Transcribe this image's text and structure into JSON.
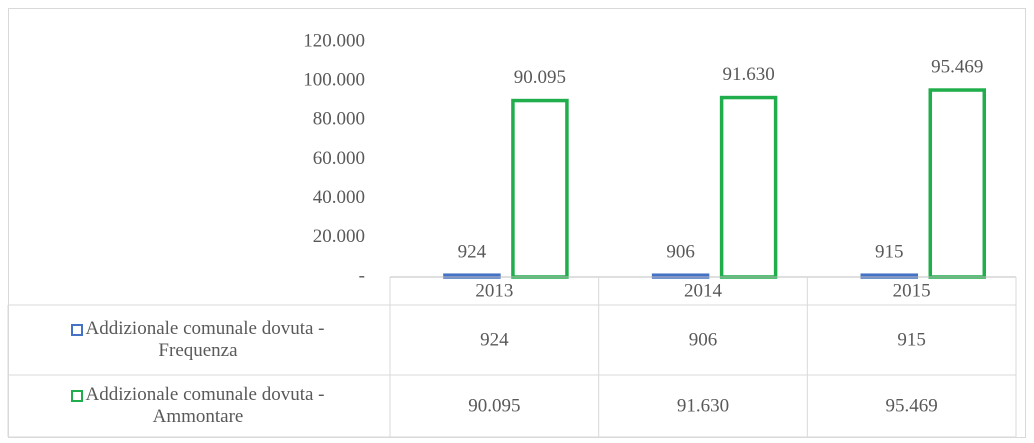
{
  "chart_data": {
    "type": "bar",
    "categories": [
      "2013",
      "2014",
      "2015"
    ],
    "series": [
      {
        "name": "Addizionale comunale dovuta - Frequenza",
        "color": "#4472c4",
        "values": [
          924,
          906,
          915
        ],
        "value_labels": [
          "924",
          "906",
          "915"
        ]
      },
      {
        "name": "Addizionale comunale dovuta - Ammontare",
        "color": "#1fae4b",
        "values": [
          90095,
          91630,
          95469
        ],
        "value_labels": [
          "90.095",
          "91.630",
          "95.469"
        ]
      }
    ],
    "ylim": [
      0,
      120000
    ],
    "yticks": [
      {
        "value": 0,
        "label": "-"
      },
      {
        "value": 20000,
        "label": "20.000"
      },
      {
        "value": 40000,
        "label": "40.000"
      },
      {
        "value": 60000,
        "label": "60.000"
      },
      {
        "value": 80000,
        "label": "80.000"
      },
      {
        "value": 100000,
        "label": "100.000"
      },
      {
        "value": 120000,
        "label": "120.000"
      }
    ],
    "grid": false,
    "data_table": true
  }
}
